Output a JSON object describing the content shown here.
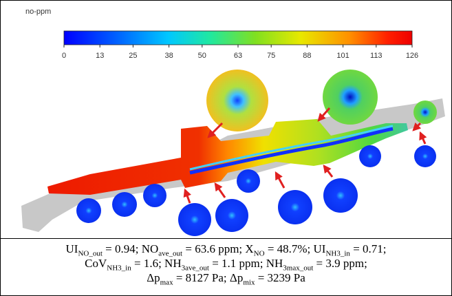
{
  "colorbar": {
    "label": "no-ppm",
    "range": [
      0,
      126
    ],
    "ticks": [
      0,
      13,
      25,
      38,
      50,
      63,
      75,
      88,
      101,
      113,
      126
    ]
  },
  "caption": {
    "lines": [
      [
        {
          "text": "UI",
          "sub": "NO_out"
        },
        {
          "text": " = 0.94; NO",
          "sub": "ave_out"
        },
        {
          "text": " = 63.6 ppm; X",
          "sub": "NO"
        },
        {
          "text": " = 48.7%; UI",
          "sub": "NH3_in"
        },
        {
          "text": " = 0.71;"
        }
      ],
      [
        {
          "text": "CoV",
          "sub": "NH3_in"
        },
        {
          "text": " = 1.6; NH",
          "sub": "3ave_out"
        },
        {
          "text": " = 1.1 ppm; NH",
          "sub": "3max_out"
        },
        {
          "text": " = 3.9 ppm;"
        }
      ],
      [
        {
          "text": "Δp",
          "sub": "max"
        },
        {
          "text": " = 8127 Pa; Δp",
          "sub": "mix"
        },
        {
          "text": " = 3239 Pa"
        }
      ]
    ]
  }
}
